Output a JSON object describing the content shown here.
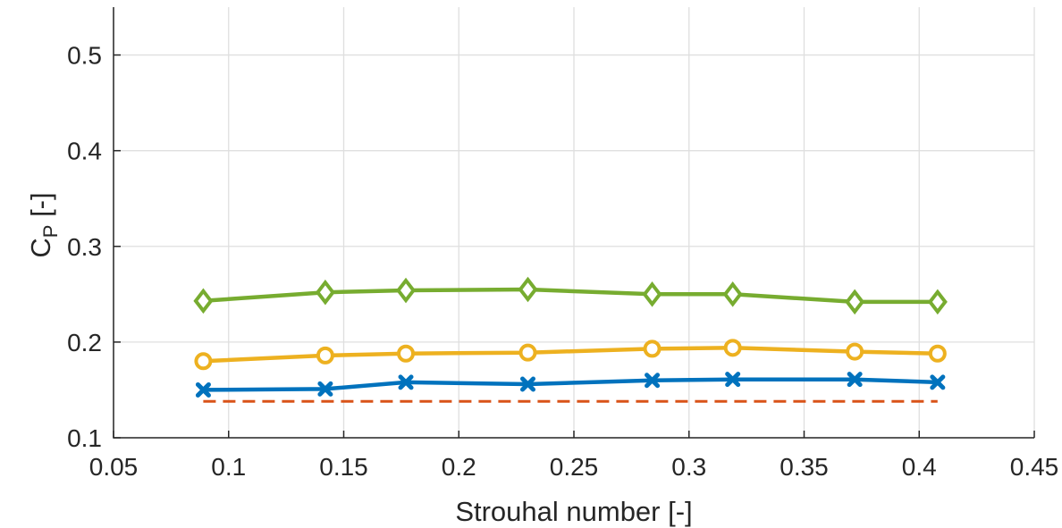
{
  "chart_data": {
    "type": "line",
    "xlabel": "Strouhal number [-]",
    "ylabel": {
      "main": "C",
      "sub": "P",
      "suffix": " [-]"
    },
    "xlim": [
      0.05,
      0.45
    ],
    "ylim": [
      0.1,
      0.55
    ],
    "xticks": [
      "0.05",
      "0.1",
      "0.15",
      "0.2",
      "0.25",
      "0.3",
      "0.35",
      "0.4",
      "0.45"
    ],
    "yticks": [
      "0.1",
      "0.2",
      "0.3",
      "0.4",
      "0.5"
    ],
    "grid": true,
    "x": [
      0.089,
      0.142,
      0.177,
      0.23,
      0.284,
      0.319,
      0.372,
      0.408
    ],
    "series": [
      {
        "color": "#77AC30",
        "marker": "diamond",
        "linestyle": "solid",
        "values": [
          0.243,
          0.252,
          0.254,
          0.255,
          0.25,
          0.25,
          0.242,
          0.242
        ]
      },
      {
        "color": "#EDB120",
        "marker": "circle",
        "linestyle": "solid",
        "values": [
          0.18,
          0.186,
          0.188,
          0.189,
          0.193,
          0.194,
          0.19,
          0.188
        ]
      },
      {
        "color": "#0072BD",
        "marker": "x",
        "linestyle": "solid",
        "values": [
          0.15,
          0.151,
          0.158,
          0.156,
          0.16,
          0.161,
          0.161,
          0.158
        ]
      },
      {
        "color": "#D95319",
        "marker": "none",
        "linestyle": "dashed",
        "x": [
          0.089,
          0.408
        ],
        "values": [
          0.138,
          0.138
        ]
      }
    ]
  }
}
